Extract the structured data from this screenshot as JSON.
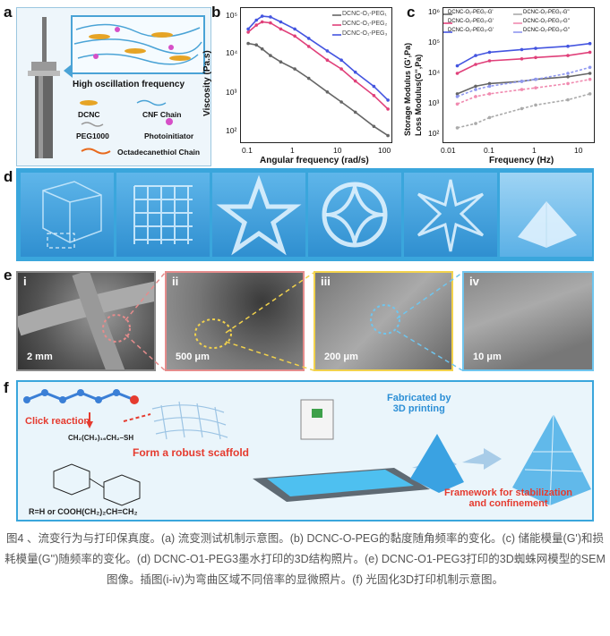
{
  "panel_labels": {
    "a": "a",
    "b": "b",
    "c": "c",
    "d": "d",
    "e": "e",
    "f": "f"
  },
  "panel_a": {
    "inset_title": "High oscillation frequency",
    "legend": [
      "DCNC",
      "CNF Chain",
      "PEG1000",
      "Photoinitiator",
      "Octadecanethiol Chain"
    ]
  },
  "panel_b": {
    "ylabel": "Viscosity (Pa.s)",
    "xlabel": "Angular frequency (rad/s)",
    "yticks": [
      "10⁵",
      "10⁴",
      "10³",
      "10²"
    ],
    "xticks": [
      "0.1",
      "1",
      "10",
      "100"
    ],
    "legend": [
      "DCNC-O₁-PEG₁",
      "DCNC-O₁-PEG₂",
      "DCNC-O₁-PEG₃"
    ]
  },
  "panel_c": {
    "ylabel1": "Storage Modulus (G',Pa)",
    "ylabel2": "Loss Modulus(G'',Pa)",
    "xlabel": "Frequency (Hz)",
    "yticks": [
      "10⁶",
      "10⁵",
      "10⁴",
      "10³",
      "10²"
    ],
    "xticks": [
      "0.01",
      "0.1",
      "1",
      "10"
    ],
    "legend": [
      "DCNC-O₁-PEG₁-G'",
      "DCNC-O₁-PEG₁-G''",
      "DCNC-O₁-PEG₂-G'",
      "DCNC-O₁-PEG₂-G''",
      "DCNC-O₁-PEG₃-G'",
      "DCNC-O₁-PEG₃-G''"
    ]
  },
  "panel_e": {
    "labels": [
      "i",
      "ii",
      "iii",
      "iv"
    ],
    "scales": [
      "2 mm",
      "500 μm",
      "200 μm",
      "10 μm"
    ]
  },
  "panel_f": {
    "click": "Click reaction",
    "chem": "CH₂(CH₂)₁₆CH₂–SH",
    "scaffold": "Form a robust scaffold",
    "fabricated": "Fabricated by\n3D printing",
    "framework": "Framework for stabilization\nand confinement",
    "rgroup": "R=H or COOH(CH₂)₂CH=CH₂"
  },
  "caption": "图4 、流变行为与打印保真度。(a) 流变测试机制示意图。(b) DCNC-O-PEG的黏度随角频率的变化。(c) 储能模量(G')和损耗模量(G'')随频率的变化。(d) DCNC-O1-PEG3墨水打印的3D结构照片。(e) DCNC-O1-PEG3打印的3D蜘蛛网模型的SEM图像。插图(i-iv)为弯曲区域不同倍率的显微照片。(f) 光固化3D打印机制示意图。",
  "colors": {
    "peg1": "#666666",
    "peg2": "#e0407a",
    "peg3": "#4455e0",
    "frame": "#3aa6dc"
  },
  "chart_data": [
    {
      "type": "line",
      "xlabel": "Angular frequency (rad/s)",
      "ylabel": "Viscosity (Pa.s)",
      "xscale": "log",
      "yscale": "log",
      "xlim": [
        0.07,
        130
      ],
      "ylim": [
        80,
        200000
      ],
      "series": [
        {
          "name": "DCNC-O₁-PEG₁",
          "x": [
            0.1,
            0.15,
            0.2,
            0.3,
            0.5,
            1,
            2,
            5,
            10,
            20,
            50,
            100
          ],
          "y": [
            26000,
            24000,
            19000,
            13000,
            9000,
            6000,
            3500,
            1600,
            900,
            500,
            220,
            130
          ]
        },
        {
          "name": "DCNC-O₁-PEG₂",
          "x": [
            0.1,
            0.15,
            0.2,
            0.3,
            0.5,
            1,
            2,
            5,
            10,
            20,
            50,
            100
          ],
          "y": [
            50000,
            75000,
            90000,
            85000,
            60000,
            40000,
            22000,
            10000,
            6000,
            3000,
            1300,
            600
          ]
        },
        {
          "name": "DCNC-O₁-PEG₃",
          "x": [
            0.1,
            0.15,
            0.2,
            0.3,
            0.5,
            1,
            2,
            5,
            10,
            20,
            50,
            100
          ],
          "y": [
            60000,
            100000,
            125000,
            120000,
            90000,
            60000,
            35000,
            17000,
            10000,
            5000,
            2200,
            1000
          ]
        }
      ]
    },
    {
      "type": "line",
      "xlabel": "Frequency (Hz)",
      "ylabel": "Storage Modulus (G',Pa) / Loss Modulus(G'',Pa)",
      "xscale": "log",
      "yscale": "log",
      "xlim": [
        0.01,
        20
      ],
      "ylim": [
        100,
        1000000
      ],
      "series": [
        {
          "name": "DCNC-O₁-PEG₁-G'",
          "x": [
            0.02,
            0.05,
            0.1,
            0.5,
            1,
            5,
            15
          ],
          "y": [
            3000,
            5000,
            6000,
            7000,
            8000,
            9500,
            12000
          ]
        },
        {
          "name": "DCNC-O₁-PEG₁-G''",
          "x": [
            0.02,
            0.05,
            0.1,
            0.5,
            1,
            5,
            15
          ],
          "y": [
            300,
            400,
            600,
            1100,
            1400,
            2000,
            3000
          ]
        },
        {
          "name": "DCNC-O₁-PEG₂-G'",
          "x": [
            0.02,
            0.05,
            0.1,
            0.5,
            1,
            5,
            15
          ],
          "y": [
            12000,
            22000,
            28000,
            32000,
            35000,
            40000,
            50000
          ]
        },
        {
          "name": "DCNC-O₁-PEG₂-G''",
          "x": [
            0.02,
            0.05,
            0.1,
            0.5,
            1,
            5,
            15
          ],
          "y": [
            1500,
            2500,
            3000,
            4000,
            4500,
            6000,
            8000
          ]
        },
        {
          "name": "DCNC-O₁-PEG₃-G'",
          "x": [
            0.02,
            0.05,
            0.1,
            0.5,
            1,
            5,
            15
          ],
          "y": [
            20000,
            40000,
            50000,
            60000,
            65000,
            75000,
            90000
          ]
        },
        {
          "name": "DCNC-O₁-PEG₃-G''",
          "x": [
            0.02,
            0.05,
            0.1,
            0.5,
            1,
            5,
            15
          ],
          "y": [
            2500,
            4000,
            5000,
            7000,
            8000,
            12000,
            18000
          ]
        }
      ]
    }
  ]
}
